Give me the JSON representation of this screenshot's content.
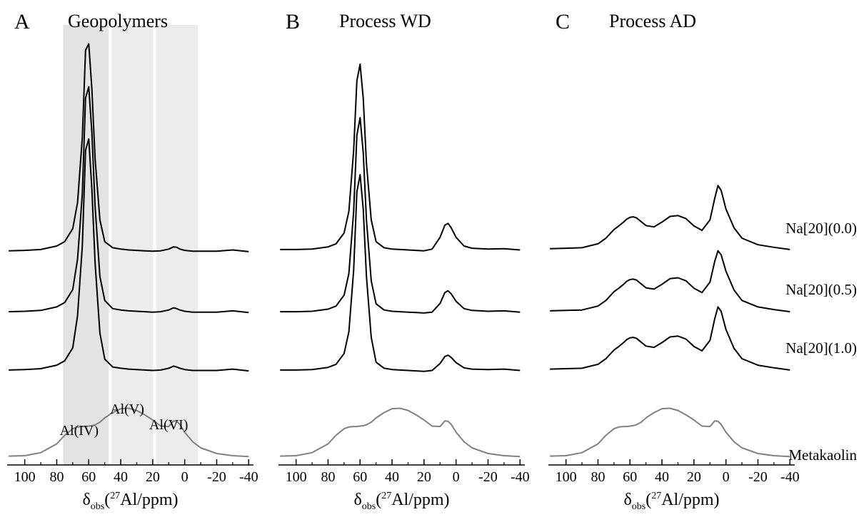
{
  "chart_data": [
    {
      "type": "line",
      "panel": "A",
      "title": "Geopolymers",
      "x_label": {
        "symbol": "δ",
        "subscript": "obs",
        "open": "(",
        "superscript": "27",
        "unit": "Al/ppm)"
      },
      "xlim": [
        111,
        -43
      ],
      "ylim": [
        0,
        100
      ],
      "xticks": [
        100,
        80,
        60,
        40,
        20,
        0,
        -20,
        -40
      ],
      "shaded_regions": [
        [
          76,
          47.5
        ],
        [
          45.7,
          19.8
        ],
        [
          17.7,
          -8.3
        ]
      ],
      "annotations": [
        "Al(IV)",
        "Al(V)",
        "Al(VI)"
      ],
      "x": [
        110,
        100,
        90,
        80,
        75,
        70,
        67,
        64,
        62,
        60,
        58,
        56,
        53,
        50,
        45,
        40,
        35,
        30,
        25,
        20,
        15,
        10,
        7,
        5,
        3,
        0,
        -5,
        -10,
        -20,
        -30,
        -40
      ],
      "series": [
        {
          "color": "#000000",
          "values": [
            48.9,
            49,
            49.2,
            50,
            51,
            54,
            60,
            75,
            95,
            96.5,
            86,
            70,
            56,
            51,
            49.6,
            49.3,
            49.1,
            49,
            48.9,
            48.8,
            48.9,
            49.3,
            49.8,
            49.7,
            49.3,
            49,
            48.8,
            48.8,
            48.8,
            49.1,
            48.7
          ]
        },
        {
          "color": "#000000",
          "values": [
            34.9,
            35,
            35.2,
            36,
            37,
            40,
            47,
            62,
            84,
            86.6,
            76,
            59,
            43,
            37.5,
            35.6,
            35.3,
            35.1,
            35,
            34.9,
            34.8,
            34.9,
            35.3,
            35.8,
            35.6,
            35.3,
            35,
            34.8,
            34.8,
            34.8,
            35.1,
            34.7
          ]
        },
        {
          "color": "#000000",
          "values": [
            21.5,
            21.6,
            21.8,
            22.6,
            23.6,
            26.6,
            34,
            50,
            72,
            74.6,
            63,
            46,
            30,
            24,
            22.2,
            21.9,
            21.7,
            21.6,
            21.5,
            21.4,
            21.5,
            21.9,
            22.4,
            22.2,
            21.9,
            21.6,
            21.4,
            21.4,
            21.4,
            21.7,
            21.3
          ]
        },
        {
          "color": "#808080",
          "values": [
            1.7,
            1.8,
            2.5,
            4.5,
            6.5,
            8,
            8.4,
            8.5,
            8.5,
            8.6,
            8.7,
            8.9,
            9.5,
            10.5,
            11.7,
            12.6,
            12.7,
            12.2,
            11.2,
            10,
            8.6,
            8.5,
            9.8,
            9.7,
            9,
            7.2,
            5,
            3.6,
            2.3,
            1.8,
            1.6
          ]
        }
      ]
    },
    {
      "type": "line",
      "panel": "B",
      "title": "Process WD",
      "x_label": {
        "symbol": "δ",
        "subscript": "obs",
        "open": "(",
        "superscript": "27",
        "unit": "Al/ppm)"
      },
      "xlim": [
        111,
        -43
      ],
      "ylim": [
        0,
        100
      ],
      "xticks": [
        100,
        80,
        60,
        40,
        20,
        0,
        -20,
        -40
      ],
      "x": [
        110,
        100,
        90,
        80,
        75,
        70,
        67,
        64,
        62,
        60,
        58,
        56,
        53,
        50,
        45,
        40,
        35,
        30,
        25,
        20,
        15,
        10,
        7,
        5,
        3,
        0,
        -5,
        -10,
        -20,
        -30,
        -40
      ],
      "series": [
        {
          "color": "#000000",
          "values": [
            49.2,
            49.2,
            49.3,
            49.8,
            50.5,
            53,
            58,
            72,
            88,
            91.8,
            84,
            69,
            56,
            51,
            49.6,
            49.3,
            49.2,
            49.1,
            49,
            48.9,
            49.3,
            52,
            54.8,
            55.2,
            54.2,
            52,
            50,
            49.5,
            49.3,
            49.4,
            49.1
          ]
        },
        {
          "color": "#000000",
          "values": [
            34.9,
            34.9,
            35,
            35.5,
            36.2,
            38.7,
            43.7,
            58,
            75.5,
            79.5,
            71.5,
            56,
            42,
            36.7,
            35.3,
            35,
            34.9,
            34.8,
            34.7,
            34.6,
            34.8,
            36.8,
            39.3,
            39.7,
            39,
            37.3,
            35.6,
            35.2,
            35,
            35.1,
            34.8
          ]
        },
        {
          "color": "#000000",
          "values": [
            21.5,
            21.5,
            21.6,
            22.1,
            22.8,
            25.3,
            30.3,
            44.5,
            62.5,
            66.4,
            58.5,
            43,
            29,
            23.3,
            21.9,
            21.6,
            21.5,
            21.4,
            21.3,
            21.2,
            21.4,
            23,
            24.6,
            24.9,
            24.4,
            23.2,
            22,
            21.7,
            21.6,
            21.7,
            21.4
          ]
        },
        {
          "color": "#808080",
          "values": [
            1.7,
            1.8,
            2.5,
            4.5,
            6.5,
            8,
            8.4,
            8.5,
            8.5,
            8.6,
            8.7,
            8.9,
            9.5,
            10.5,
            11.7,
            12.6,
            12.7,
            12.2,
            11.2,
            10,
            8.6,
            8.5,
            9.8,
            9.7,
            9,
            7.2,
            5,
            3.6,
            2.3,
            1.8,
            1.6
          ]
        }
      ]
    },
    {
      "type": "line",
      "panel": "C",
      "title": "Process AD",
      "x_label": {
        "symbol": "δ",
        "subscript": "obs",
        "open": "(",
        "superscript": "27",
        "unit": "Al/ppm)"
      },
      "xlim": [
        111,
        -43
      ],
      "ylim": [
        0,
        100
      ],
      "xticks": [
        100,
        80,
        60,
        40,
        20,
        0,
        -20,
        -40
      ],
      "x": [
        110,
        100,
        90,
        80,
        75,
        70,
        67,
        64,
        62,
        60,
        58,
        56,
        53,
        50,
        45,
        40,
        35,
        30,
        25,
        20,
        15,
        10,
        7,
        5,
        3,
        0,
        -5,
        -10,
        -20,
        -30,
        -40
      ],
      "series": [
        {
          "name": "Na[20](0.0)",
          "color": "#000000",
          "values": [
            49.4,
            49.5,
            49.6,
            50.5,
            51.8,
            53.8,
            54.6,
            55.5,
            56.2,
            56.6,
            56.7,
            56.5,
            55.6,
            54.7,
            54.4,
            55.5,
            56.8,
            57,
            56.3,
            54.6,
            53.6,
            56,
            61,
            63.9,
            62.8,
            58.5,
            54.2,
            51.8,
            50.3,
            49.7,
            49.2
          ]
        },
        {
          "name": "Na[20](0.5)",
          "color": "#000000",
          "values": [
            35.1,
            35.2,
            35.3,
            36.2,
            37.5,
            39.5,
            40.3,
            41.2,
            41.9,
            42.3,
            42.4,
            42.2,
            41.3,
            40.4,
            40.1,
            41.2,
            42.5,
            42.7,
            42,
            40.3,
            39.3,
            41.7,
            46.5,
            48.9,
            48,
            44.2,
            39.9,
            37.5,
            36,
            35.4,
            34.9
          ]
        },
        {
          "name": "Na[20](1.0)",
          "color": "#000000",
          "values": [
            21.7,
            21.8,
            21.9,
            22.8,
            24.1,
            26.1,
            26.9,
            27.8,
            28.5,
            28.9,
            29,
            28.8,
            27.9,
            27,
            26.7,
            27.8,
            29.1,
            29.3,
            28.6,
            26.9,
            25.9,
            28.3,
            33.3,
            36,
            35,
            30.8,
            26.5,
            24.1,
            22.6,
            22,
            21.5
          ]
        },
        {
          "name": "Metakaolin",
          "color": "#808080",
          "values": [
            1.7,
            1.8,
            2.5,
            4.5,
            6.5,
            8,
            8.4,
            8.5,
            8.5,
            8.6,
            8.7,
            8.9,
            9.5,
            10.5,
            11.7,
            12.6,
            12.7,
            12.2,
            11.2,
            10,
            8.6,
            8.5,
            9.8,
            9.7,
            9,
            7.2,
            5,
            3.6,
            2.3,
            1.8,
            1.6
          ]
        }
      ]
    }
  ]
}
